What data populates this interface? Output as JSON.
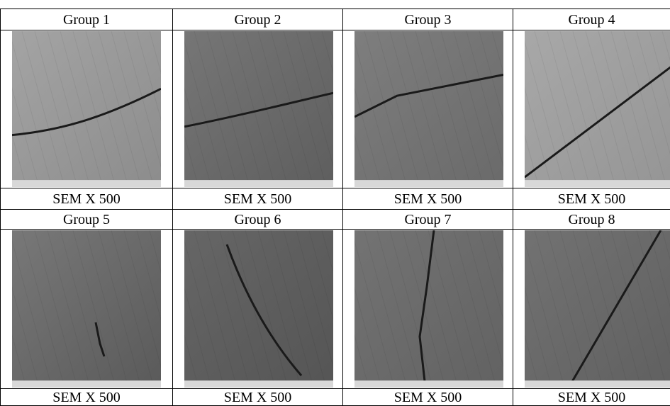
{
  "table": {
    "blocks": [
      {
        "headers": [
          "Group 1",
          "Group 2",
          "Group 3",
          "Group 4"
        ],
        "captions": [
          "SEM X 500",
          "SEM X 500",
          "SEM X 500",
          "SEM X 500"
        ]
      },
      {
        "headers": [
          "Group 5",
          "Group 6",
          "Group 7",
          "Group 8"
        ],
        "captions": [
          "SEM X 500",
          "SEM X 500",
          "SEM X 500",
          "SEM X 500"
        ]
      }
    ]
  }
}
